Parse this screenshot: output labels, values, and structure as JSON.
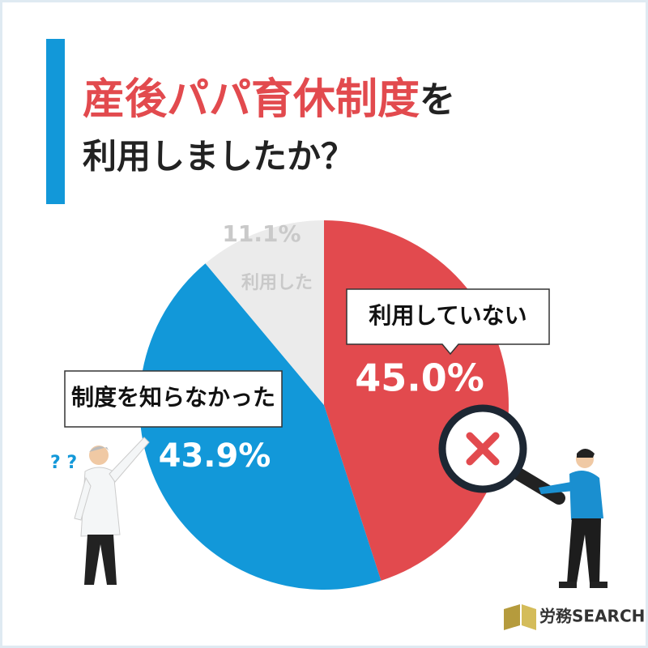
{
  "chart_data": {
    "type": "pie",
    "title": {
      "highlight": "産後パパ育休制度",
      "rest": "を",
      "line2": "利用しましたか？"
    },
    "categories": [
      "利用していない",
      "制度を知らなかった",
      "利用した"
    ],
    "values": [
      45.0,
      43.9,
      11.1
    ],
    "value_labels": [
      "45.0%",
      "43.9%",
      "11.1%"
    ],
    "colors": [
      "#e24a4e",
      "#1298d9",
      "#ebebeb"
    ],
    "brand": "労務SEARCH"
  }
}
